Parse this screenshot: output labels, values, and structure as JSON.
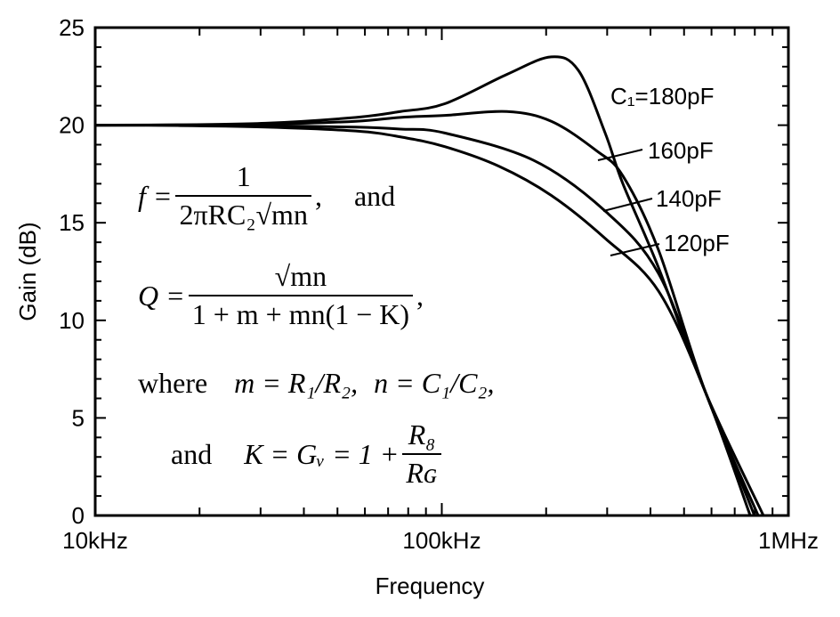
{
  "chart_data": {
    "type": "line",
    "xlabel": "Frequency",
    "ylabel": "Gain (dB)",
    "x_scale": "log",
    "x_unit": "kHz",
    "xlim": [
      10,
      1000
    ],
    "ylim": [
      0,
      25
    ],
    "x_ticks": [
      {
        "value": 10,
        "label": "10kHz"
      },
      {
        "value": 100,
        "label": "100kHz"
      },
      {
        "value": 1000,
        "label": "1MHz"
      }
    ],
    "y_ticks": [
      0,
      5,
      10,
      15,
      20,
      25
    ],
    "grid": false,
    "line_color": "#000000",
    "series": [
      {
        "name": "C1=180pF",
        "label": "C₁=180pF",
        "x": [
          10,
          17.3,
          31,
          56.5,
          76,
          102,
          154,
          207,
          248,
          296,
          333,
          422,
          577,
          847
        ],
        "y": [
          20,
          20.02,
          20.1,
          20.4,
          20.7,
          21.1,
          22.6,
          23.5,
          22.8,
          19.6,
          17.0,
          12.7,
          6.3,
          0
        ]
      },
      {
        "name": "160pF",
        "label": "160pF",
        "x": [
          10,
          17.3,
          31,
          56.5,
          76,
          102,
          154,
          207,
          279,
          333,
          422,
          577,
          818
        ],
        "y": [
          20,
          20.01,
          20.05,
          20.2,
          20.4,
          20.5,
          20.7,
          20.2,
          18.7,
          17.4,
          13.6,
          6.3,
          0
        ]
      },
      {
        "name": "140pF",
        "label": "140pF",
        "x": [
          10,
          17.3,
          31,
          56.5,
          76,
          102,
          184,
          296,
          422,
          577,
          798
        ],
        "y": [
          20,
          20,
          19.97,
          19.9,
          19.8,
          19.6,
          18.2,
          15.6,
          12.4,
          6.3,
          0
        ]
      },
      {
        "name": "120pF",
        "label": "120pF",
        "x": [
          10,
          17.3,
          31,
          56.5,
          76,
          102,
          146,
          207,
          296,
          422,
          577,
          776
        ],
        "y": [
          20,
          19.98,
          19.9,
          19.7,
          19.4,
          18.9,
          17.9,
          16.4,
          14.2,
          11.5,
          6.3,
          0
        ]
      }
    ]
  },
  "equations": {
    "f_lhs": "f =",
    "f_num": "1",
    "f_den": "2πRC₂√mn",
    "f_tail": ",",
    "and1": "and",
    "q_lhs": "Q =",
    "q_num": "√mn",
    "q_den": "1 + m + mn(1 − K)",
    "q_tail": ",",
    "where": "where",
    "m_def": "m = R₁/R₂,",
    "n_def": "n = C₁/C₂,",
    "and2": "and",
    "k_lhs": "K = Gᵥ = 1 +",
    "k_num": "R₈",
    "k_den": "Rɢ"
  }
}
